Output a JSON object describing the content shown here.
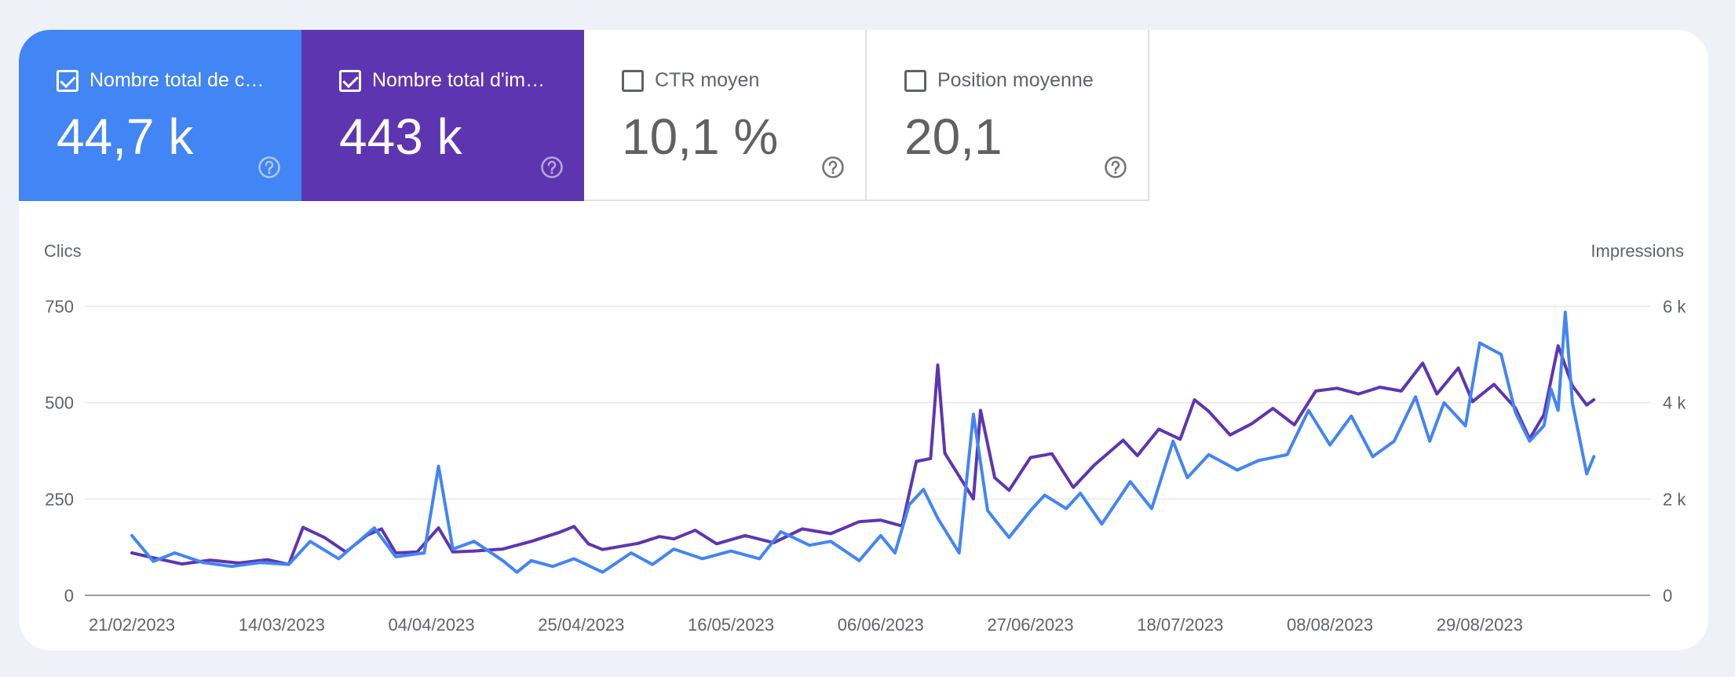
{
  "cards": [
    {
      "label": "Nombre total de c…",
      "value": "44,7 k",
      "checked": true
    },
    {
      "label": "Nombre total d'im…",
      "value": "443 k",
      "checked": true
    },
    {
      "label": "CTR moyen",
      "value": "10,1 %",
      "checked": false
    },
    {
      "label": "Position moyenne",
      "value": "20,1",
      "checked": false
    }
  ],
  "colors": {
    "clicks": "#4285f4",
    "impressions": "#5e35b1"
  },
  "chart_data": {
    "type": "line",
    "y_left_label": "Clics",
    "y_right_label": "Impressions",
    "y_left_ticks": [
      "750",
      "500",
      "250",
      "0"
    ],
    "y_right_ticks": [
      "6 k",
      "4 k",
      "2 k",
      "0"
    ],
    "ylim_left": [
      0,
      750
    ],
    "ylim_right": [
      0,
      6000
    ],
    "x_start": "21/02/2023",
    "x_end": "12/09/2023",
    "x_ticks": [
      "21/02/2023",
      "14/03/2023",
      "04/04/2023",
      "25/04/2023",
      "16/05/2023",
      "06/06/2023",
      "27/06/2023",
      "18/07/2023",
      "08/08/2023",
      "29/08/2023"
    ],
    "series": [
      {
        "axis": "left",
        "keypoints": [
          [
            "21/02/2023",
            155
          ],
          [
            "24/02/2023",
            88
          ],
          [
            "27/02/2023",
            110
          ],
          [
            "03/03/2023",
            85
          ],
          [
            "07/03/2023",
            75
          ],
          [
            "11/03/2023",
            85
          ],
          [
            "15/03/2023",
            80
          ],
          [
            "18/03/2023",
            140
          ],
          [
            "22/03/2023",
            95
          ],
          [
            "27/03/2023",
            175
          ],
          [
            "30/03/2023",
            100
          ],
          [
            "03/04/2023",
            110
          ],
          [
            "05/04/2023",
            335
          ],
          [
            "07/04/2023",
            120
          ],
          [
            "10/04/2023",
            140
          ],
          [
            "14/04/2023",
            90
          ],
          [
            "16/04/2023",
            60
          ],
          [
            "18/04/2023",
            90
          ],
          [
            "21/04/2023",
            75
          ],
          [
            "24/04/2023",
            95
          ],
          [
            "28/04/2023",
            60
          ],
          [
            "02/05/2023",
            110
          ],
          [
            "05/05/2023",
            80
          ],
          [
            "08/05/2023",
            120
          ],
          [
            "12/05/2023",
            95
          ],
          [
            "16/05/2023",
            115
          ],
          [
            "20/05/2023",
            95
          ],
          [
            "23/05/2023",
            165
          ],
          [
            "27/05/2023",
            130
          ],
          [
            "30/05/2023",
            140
          ],
          [
            "03/06/2023",
            90
          ],
          [
            "06/06/2023",
            155
          ],
          [
            "08/06/2023",
            110
          ],
          [
            "10/06/2023",
            235
          ],
          [
            "12/06/2023",
            275
          ],
          [
            "14/06/2023",
            200
          ],
          [
            "17/06/2023",
            110
          ],
          [
            "19/06/2023",
            470
          ],
          [
            "21/06/2023",
            220
          ],
          [
            "24/06/2023",
            150
          ],
          [
            "27/06/2023",
            220
          ],
          [
            "29/06/2023",
            260
          ],
          [
            "02/07/2023",
            225
          ],
          [
            "04/07/2023",
            265
          ],
          [
            "07/07/2023",
            185
          ],
          [
            "11/07/2023",
            295
          ],
          [
            "14/07/2023",
            225
          ],
          [
            "17/07/2023",
            400
          ],
          [
            "19/07/2023",
            305
          ],
          [
            "22/07/2023",
            365
          ],
          [
            "26/07/2023",
            325
          ],
          [
            "29/07/2023",
            350
          ],
          [
            "02/08/2023",
            365
          ],
          [
            "05/08/2023",
            480
          ],
          [
            "08/08/2023",
            390
          ],
          [
            "11/08/2023",
            465
          ],
          [
            "14/08/2023",
            360
          ],
          [
            "17/08/2023",
            400
          ],
          [
            "20/08/2023",
            515
          ],
          [
            "22/08/2023",
            400
          ],
          [
            "24/08/2023",
            500
          ],
          [
            "27/08/2023",
            440
          ],
          [
            "29/08/2023",
            655
          ],
          [
            "01/09/2023",
            625
          ],
          [
            "03/09/2023",
            475
          ],
          [
            "05/09/2023",
            400
          ],
          [
            "07/09/2023",
            440
          ],
          [
            "08/09/2023",
            535
          ],
          [
            "09/09/2023",
            480
          ],
          [
            "10/09/2023",
            735
          ],
          [
            "11/09/2023",
            500
          ],
          [
            "13/09/2023",
            315
          ],
          [
            "14/09/2023",
            360
          ]
        ]
      },
      {
        "axis": "right",
        "keypoints": [
          [
            "21/02/2023",
            880
          ],
          [
            "24/02/2023",
            780
          ],
          [
            "28/02/2023",
            650
          ],
          [
            "04/03/2023",
            730
          ],
          [
            "08/03/2023",
            670
          ],
          [
            "12/03/2023",
            740
          ],
          [
            "15/03/2023",
            640
          ],
          [
            "17/03/2023",
            1410
          ],
          [
            "20/03/2023",
            1200
          ],
          [
            "23/03/2023",
            900
          ],
          [
            "26/03/2023",
            1250
          ],
          [
            "28/03/2023",
            1380
          ],
          [
            "30/03/2023",
            880
          ],
          [
            "02/04/2023",
            900
          ],
          [
            "05/04/2023",
            1400
          ],
          [
            "07/04/2023",
            900
          ],
          [
            "10/04/2023",
            920
          ],
          [
            "14/04/2023",
            960
          ],
          [
            "18/04/2023",
            1120
          ],
          [
            "22/04/2023",
            1310
          ],
          [
            "24/04/2023",
            1430
          ],
          [
            "26/04/2023",
            1070
          ],
          [
            "28/04/2023",
            950
          ],
          [
            "03/05/2023",
            1080
          ],
          [
            "06/05/2023",
            1220
          ],
          [
            "08/05/2023",
            1170
          ],
          [
            "11/05/2023",
            1350
          ],
          [
            "14/05/2023",
            1070
          ],
          [
            "18/05/2023",
            1240
          ],
          [
            "22/05/2023",
            1090
          ],
          [
            "26/05/2023",
            1380
          ],
          [
            "30/05/2023",
            1280
          ],
          [
            "03/06/2023",
            1530
          ],
          [
            "06/06/2023",
            1560
          ],
          [
            "09/06/2023",
            1440
          ],
          [
            "11/06/2023",
            2780
          ],
          [
            "13/06/2023",
            2840
          ],
          [
            "14/06/2023",
            4780
          ],
          [
            "15/06/2023",
            2950
          ],
          [
            "19/06/2023",
            2000
          ],
          [
            "20/06/2023",
            3840
          ],
          [
            "22/06/2023",
            2440
          ],
          [
            "24/06/2023",
            2180
          ],
          [
            "27/06/2023",
            2860
          ],
          [
            "30/06/2023",
            2940
          ],
          [
            "03/07/2023",
            2240
          ],
          [
            "06/07/2023",
            2710
          ],
          [
            "10/07/2023",
            3220
          ],
          [
            "12/07/2023",
            2900
          ],
          [
            "15/07/2023",
            3450
          ],
          [
            "18/07/2023",
            3240
          ],
          [
            "20/07/2023",
            4060
          ],
          [
            "22/07/2023",
            3820
          ],
          [
            "25/07/2023",
            3330
          ],
          [
            "28/07/2023",
            3560
          ],
          [
            "31/07/2023",
            3880
          ],
          [
            "03/08/2023",
            3540
          ],
          [
            "06/08/2023",
            4240
          ],
          [
            "09/08/2023",
            4300
          ],
          [
            "12/08/2023",
            4180
          ],
          [
            "15/08/2023",
            4320
          ],
          [
            "18/08/2023",
            4240
          ],
          [
            "21/08/2023",
            4820
          ],
          [
            "23/08/2023",
            4180
          ],
          [
            "26/08/2023",
            4720
          ],
          [
            "28/08/2023",
            4020
          ],
          [
            "31/08/2023",
            4380
          ],
          [
            "03/09/2023",
            3890
          ],
          [
            "05/09/2023",
            3250
          ],
          [
            "07/09/2023",
            3750
          ],
          [
            "09/09/2023",
            5180
          ],
          [
            "11/09/2023",
            4350
          ],
          [
            "13/09/2023",
            3950
          ],
          [
            "14/09/2023",
            4060
          ]
        ]
      }
    ]
  }
}
